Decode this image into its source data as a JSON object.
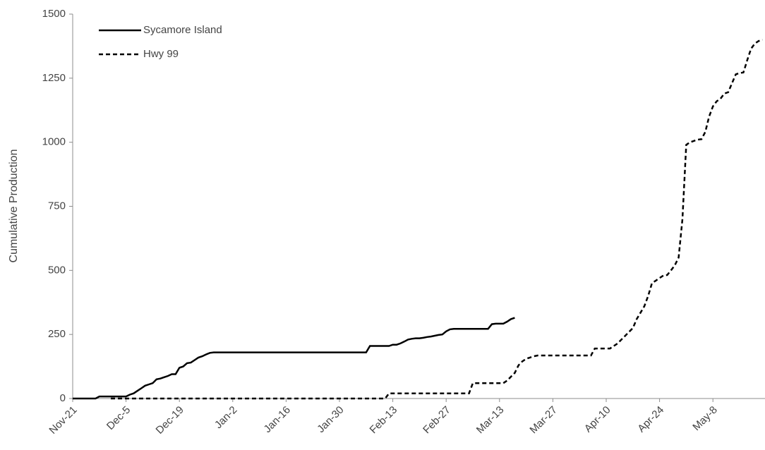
{
  "chart_data": {
    "type": "line",
    "y_label": "Cumulative Production",
    "legend": "upper left",
    "grid": false,
    "ylim": [
      0,
      1500
    ],
    "yticks": [
      0,
      250,
      500,
      750,
      1000,
      1250,
      1500
    ],
    "categories": [
      "Nov-21",
      null,
      null,
      null,
      null,
      null,
      null,
      null,
      null,
      null,
      null,
      null,
      null,
      null,
      "Dec-5",
      null,
      null,
      null,
      null,
      null,
      null,
      null,
      null,
      null,
      null,
      null,
      null,
      null,
      "Dec-19",
      null,
      null,
      null,
      null,
      null,
      null,
      null,
      null,
      null,
      null,
      null,
      null,
      null,
      "Jan-2",
      null,
      null,
      null,
      null,
      null,
      null,
      null,
      null,
      null,
      null,
      null,
      null,
      null,
      "Jan-16",
      null,
      null,
      null,
      null,
      null,
      null,
      null,
      null,
      null,
      null,
      null,
      null,
      null,
      "Jan-30",
      null,
      null,
      null,
      null,
      null,
      null,
      null,
      null,
      null,
      null,
      null,
      null,
      null,
      "Feb-13",
      null,
      null,
      null,
      null,
      null,
      null,
      null,
      null,
      null,
      null,
      null,
      null,
      null,
      "Feb-27",
      null,
      null,
      null,
      null,
      null,
      null,
      null,
      null,
      null,
      null,
      null,
      null,
      null,
      "Mar-13",
      null,
      null,
      null,
      null,
      null,
      null,
      null,
      null,
      null,
      null,
      null,
      null,
      null,
      "Mar-27",
      null,
      null,
      null,
      null,
      null,
      null,
      null,
      null,
      null,
      null,
      null,
      null,
      null,
      "Apr-10",
      null,
      null,
      null,
      null,
      null,
      null,
      null,
      null,
      null,
      null,
      null,
      null,
      null,
      "Apr-24",
      null,
      null,
      null,
      null,
      null,
      null,
      null,
      null,
      null,
      null,
      null,
      null,
      null,
      "May-8",
      null,
      null,
      null,
      null,
      null,
      null,
      null,
      null,
      null,
      null,
      null,
      null,
      null
    ],
    "series": [
      {
        "name": "Sycamore Island",
        "color": "#000000",
        "linestyle": "solid",
        "values": [
          0,
          0,
          0,
          0,
          0,
          0,
          0,
          8,
          8,
          8,
          8,
          8,
          8,
          8,
          8,
          15,
          20,
          30,
          40,
          50,
          55,
          60,
          75,
          78,
          83,
          88,
          95,
          95,
          120,
          125,
          138,
          140,
          150,
          160,
          165,
          172,
          178,
          180,
          180,
          180,
          180,
          180,
          180,
          180,
          180,
          180,
          180,
          180,
          180,
          180,
          180,
          180,
          180,
          180,
          180,
          180,
          180,
          180,
          180,
          180,
          180,
          180,
          180,
          180,
          180,
          180,
          180,
          180,
          180,
          180,
          180,
          180,
          180,
          180,
          180,
          180,
          180,
          180,
          205,
          205,
          205,
          205,
          205,
          205,
          210,
          210,
          215,
          222,
          230,
          233,
          235,
          235,
          237,
          240,
          242,
          245,
          248,
          250,
          262,
          270,
          272,
          272,
          272,
          272,
          272,
          272,
          272,
          272,
          272,
          272,
          290,
          292,
          292,
          292,
          300,
          310,
          315,
          null,
          null,
          null,
          null,
          null,
          null,
          null,
          null,
          null,
          null,
          null,
          null,
          null,
          null,
          null,
          null,
          null,
          null,
          null,
          null,
          null,
          null,
          null,
          null,
          null,
          null,
          null,
          null,
          null,
          null,
          null,
          null,
          null,
          null,
          null,
          null,
          null,
          null,
          null,
          null,
          null,
          null,
          null,
          null,
          null,
          null,
          null,
          null,
          null,
          null,
          null,
          null,
          null,
          null,
          null,
          null,
          null,
          null,
          null,
          null,
          null,
          null,
          null,
          null,
          null
        ]
      },
      {
        "name": "Hwy 99",
        "color": "#000000",
        "linestyle": "dashed",
        "values": [
          null,
          null,
          null,
          null,
          null,
          null,
          null,
          null,
          null,
          null,
          0,
          0,
          0,
          0,
          0,
          0,
          0,
          0,
          0,
          0,
          0,
          0,
          0,
          0,
          0,
          0,
          0,
          0,
          0,
          0,
          0,
          0,
          0,
          0,
          0,
          0,
          0,
          0,
          0,
          0,
          0,
          0,
          0,
          0,
          0,
          0,
          0,
          0,
          0,
          0,
          0,
          0,
          0,
          0,
          0,
          0,
          0,
          0,
          0,
          0,
          0,
          0,
          0,
          0,
          0,
          0,
          0,
          0,
          0,
          0,
          0,
          0,
          0,
          0,
          0,
          0,
          0,
          0,
          0,
          0,
          0,
          0,
          0,
          20,
          20,
          20,
          20,
          20,
          20,
          20,
          20,
          20,
          20,
          20,
          20,
          20,
          20,
          20,
          20,
          20,
          20,
          20,
          20,
          20,
          20,
          60,
          60,
          60,
          60,
          60,
          60,
          60,
          60,
          60,
          70,
          85,
          100,
          130,
          145,
          155,
          160,
          165,
          168,
          168,
          168,
          168,
          168,
          168,
          168,
          168,
          168,
          168,
          168,
          168,
          168,
          168,
          168,
          195,
          195,
          195,
          195,
          195,
          205,
          215,
          230,
          245,
          260,
          275,
          310,
          335,
          360,
          400,
          450,
          460,
          470,
          480,
          482,
          500,
          520,
          550,
          700,
          990,
          1000,
          1005,
          1010,
          1012,
          1040,
          1100,
          1140,
          1160,
          1170,
          1190,
          1195,
          1230,
          1265,
          1270,
          1272,
          1320,
          1365,
          1385,
          1395,
          1400
        ]
      }
    ]
  }
}
